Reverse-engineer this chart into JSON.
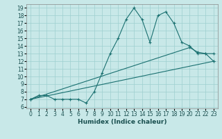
{
  "title": "",
  "xlabel": "Humidex (Indice chaleur)",
  "bg_color": "#c8e8e8",
  "line_color": "#1a7070",
  "xlim": [
    -0.5,
    23.5
  ],
  "ylim": [
    5.8,
    19.5
  ],
  "xticks": [
    0,
    1,
    2,
    3,
    4,
    5,
    6,
    7,
    8,
    9,
    10,
    11,
    12,
    13,
    14,
    15,
    16,
    17,
    18,
    19,
    20,
    21,
    22,
    23
  ],
  "yticks": [
    6,
    7,
    8,
    9,
    10,
    11,
    12,
    13,
    14,
    15,
    16,
    17,
    18,
    19
  ],
  "line1_x": [
    0,
    1,
    2,
    3,
    4,
    5,
    6,
    7,
    8,
    9,
    10,
    11,
    12,
    13,
    14,
    15,
    16,
    17,
    18,
    19,
    20,
    21,
    22,
    23
  ],
  "line1_y": [
    7.0,
    7.5,
    7.5,
    7.0,
    7.0,
    7.0,
    7.0,
    6.5,
    8.0,
    10.5,
    13.0,
    15.0,
    17.5,
    19.0,
    17.5,
    14.5,
    18.0,
    18.5,
    17.0,
    14.5,
    14.0,
    13.0,
    13.0,
    12.0
  ],
  "line2_x": [
    0,
    20,
    21,
    22,
    23
  ],
  "line2_y": [
    7.0,
    13.8,
    13.2,
    13.0,
    13.0
  ],
  "line3_x": [
    0,
    23
  ],
  "line3_y": [
    7.0,
    12.0
  ],
  "marker": "+",
  "markersize": 3,
  "linewidth": 0.8,
  "tick_fontsize": 5.5,
  "xlabel_fontsize": 6.5
}
